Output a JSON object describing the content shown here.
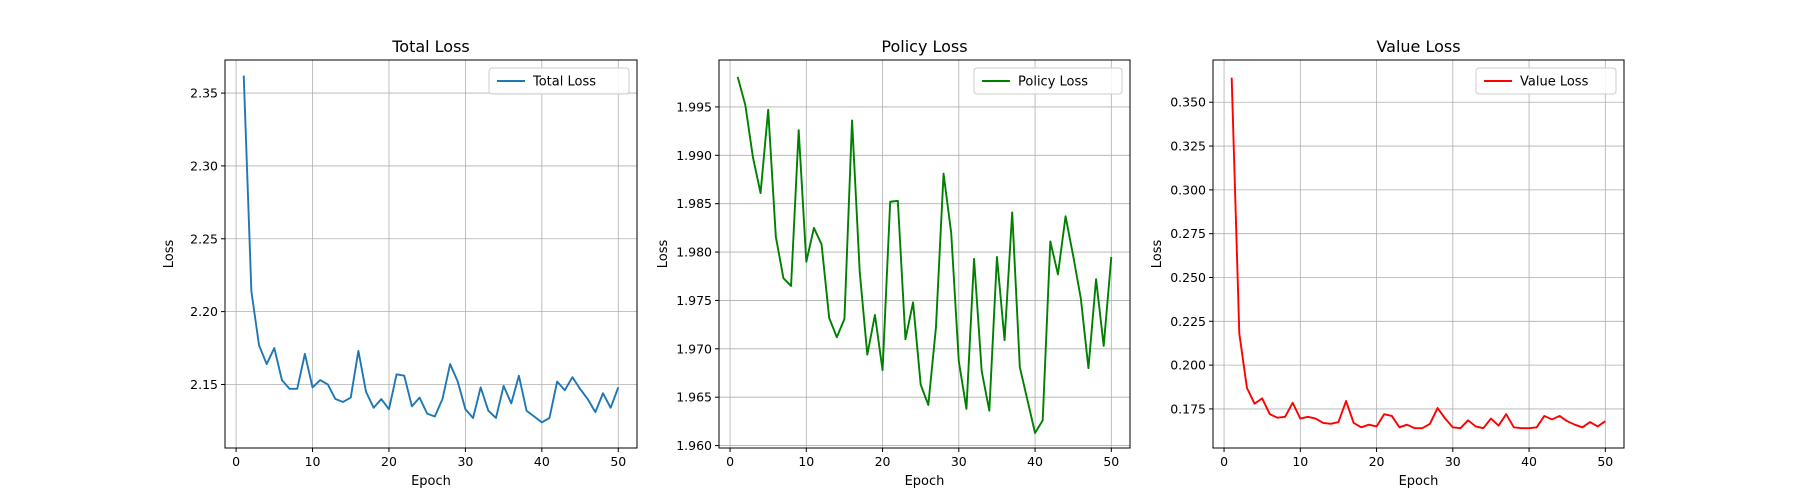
{
  "chart_data": [
    {
      "type": "line",
      "title": "Total Loss",
      "xlabel": "Epoch",
      "ylabel": "Loss",
      "xlim": [
        -1.45,
        52.45
      ],
      "ylim": [
        2.1064,
        2.3727
      ],
      "xticks": [
        0,
        10,
        20,
        30,
        40,
        50
      ],
      "yticks": [
        2.15,
        2.2,
        2.25,
        2.3,
        2.35
      ],
      "yticklabels": [
        "2.15",
        "2.20",
        "2.25",
        "2.30",
        "2.35"
      ],
      "grid": true,
      "legend_position": "top-right",
      "series": [
        {
          "name": "Total Loss",
          "color": "#1f77b4",
          "x": [
            1,
            2,
            3,
            4,
            5,
            6,
            7,
            8,
            9,
            10,
            11,
            12,
            13,
            14,
            15,
            16,
            17,
            18,
            19,
            20,
            21,
            22,
            23,
            24,
            25,
            26,
            27,
            28,
            29,
            30,
            31,
            32,
            33,
            34,
            35,
            36,
            37,
            38,
            39,
            40,
            41,
            42,
            43,
            44,
            45,
            46,
            47,
            48,
            49,
            50
          ],
          "values": [
            2.362,
            2.214,
            2.177,
            2.164,
            2.175,
            2.153,
            2.147,
            2.147,
            2.171,
            2.148,
            2.153,
            2.15,
            2.14,
            2.138,
            2.141,
            2.173,
            2.145,
            2.134,
            2.14,
            2.133,
            2.157,
            2.156,
            2.135,
            2.141,
            2.13,
            2.128,
            2.14,
            2.164,
            2.152,
            2.133,
            2.127,
            2.148,
            2.132,
            2.127,
            2.149,
            2.137,
            2.156,
            2.132,
            2.128,
            2.124,
            2.127,
            2.152,
            2.146,
            2.155,
            2.147,
            2.14,
            2.131,
            2.144,
            2.134,
            2.148
          ]
        }
      ]
    },
    {
      "type": "line",
      "title": "Policy Loss",
      "xlabel": "Epoch",
      "ylabel": "Loss",
      "xlim": [
        -1.45,
        52.45
      ],
      "ylim": [
        1.95975,
        1.99985
      ],
      "xticks": [
        0,
        10,
        20,
        30,
        40,
        50
      ],
      "yticks": [
        1.96,
        1.965,
        1.97,
        1.975,
        1.98,
        1.985,
        1.99,
        1.995
      ],
      "yticklabels": [
        "1.960",
        "1.965",
        "1.970",
        "1.975",
        "1.980",
        "1.985",
        "1.990",
        "1.995"
      ],
      "grid": true,
      "legend_position": "top-right",
      "series": [
        {
          "name": "Policy Loss",
          "color": "#008000",
          "x": [
            1,
            2,
            3,
            4,
            5,
            6,
            7,
            8,
            9,
            10,
            11,
            12,
            13,
            14,
            15,
            16,
            17,
            18,
            19,
            20,
            21,
            22,
            23,
            24,
            25,
            26,
            27,
            28,
            29,
            30,
            31,
            32,
            33,
            34,
            35,
            36,
            37,
            38,
            39,
            40,
            41,
            42,
            43,
            44,
            45,
            46,
            47,
            48,
            49,
            50
          ],
          "values": [
            1.9981,
            1.9952,
            1.9898,
            1.9861,
            1.9947,
            1.9816,
            1.9773,
            1.9765,
            1.9926,
            1.979,
            1.9825,
            1.9808,
            1.9732,
            1.9712,
            1.9731,
            1.9936,
            1.978,
            1.9694,
            1.9735,
            1.9678,
            1.9852,
            1.9853,
            1.971,
            1.9748,
            1.9663,
            1.9642,
            1.9722,
            1.9881,
            1.982,
            1.9687,
            1.9638,
            1.9793,
            1.9677,
            1.9636,
            1.9795,
            1.9709,
            1.9841,
            1.9681,
            1.9647,
            1.9613,
            1.9626,
            1.9811,
            1.9777,
            1.9837,
            1.9796,
            1.9752,
            1.968,
            1.9772,
            1.9703,
            1.9795
          ]
        }
      ]
    },
    {
      "type": "line",
      "title": "Value Loss",
      "xlabel": "Epoch",
      "ylabel": "Loss",
      "xlim": [
        -1.45,
        52.45
      ],
      "ylim": [
        0.1527,
        0.3741
      ],
      "xticks": [
        0,
        10,
        20,
        30,
        40,
        50
      ],
      "yticks": [
        0.175,
        0.2,
        0.225,
        0.25,
        0.275,
        0.3,
        0.325,
        0.35
      ],
      "yticklabels": [
        "0.175",
        "0.200",
        "0.225",
        "0.250",
        "0.275",
        "0.300",
        "0.325",
        "0.350"
      ],
      "grid": true,
      "legend_position": "top-right",
      "series": [
        {
          "name": "Value Loss",
          "color": "#ff0000",
          "x": [
            1,
            2,
            3,
            4,
            5,
            6,
            7,
            8,
            9,
            10,
            11,
            12,
            13,
            14,
            15,
            16,
            17,
            18,
            19,
            20,
            21,
            22,
            23,
            24,
            25,
            26,
            27,
            28,
            29,
            30,
            31,
            32,
            33,
            34,
            35,
            36,
            37,
            38,
            39,
            40,
            41,
            42,
            43,
            44,
            45,
            46,
            47,
            48,
            49,
            50
          ],
          "values": [
            0.364,
            0.218,
            0.187,
            0.178,
            0.181,
            0.172,
            0.17,
            0.1705,
            0.1785,
            0.1695,
            0.1705,
            0.1695,
            0.167,
            0.1665,
            0.1675,
            0.1795,
            0.167,
            0.1645,
            0.166,
            0.165,
            0.172,
            0.171,
            0.1645,
            0.166,
            0.164,
            0.164,
            0.1665,
            0.1755,
            0.1695,
            0.1645,
            0.164,
            0.1685,
            0.165,
            0.164,
            0.1695,
            0.1655,
            0.172,
            0.1645,
            0.164,
            0.164,
            0.1645,
            0.171,
            0.169,
            0.171,
            0.168,
            0.166,
            0.1645,
            0.1675,
            0.165,
            0.168
          ]
        }
      ]
    }
  ]
}
